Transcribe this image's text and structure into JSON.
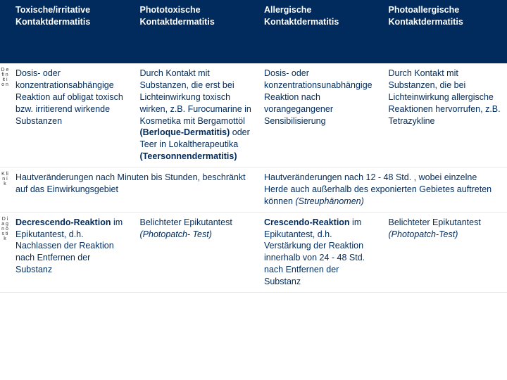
{
  "header": {
    "col1": "Toxische/irritative Kontaktdermatitis",
    "col2": "Phototoxische Kontaktdermatitis",
    "col3": "Allergische Kontaktdermatitis",
    "col4": "Photoallergische Kontaktdermatitis"
  },
  "rows": {
    "definition": {
      "side": "D e fi n it i o n",
      "c1": "Dosis- oder konzentrationsabhängige Reaktion auf obligat toxisch bzw. irritierend wirkende Substanzen",
      "c2_a": "Durch Kontakt mit Substanzen, die erst bei Lichteinwirkung toxisch wirken, z.B. Furocumarine in Kosmetika mit Bergamottöl ",
      "c2_b": "(Berloque-Dermatitis)",
      "c2_c": " oder Teer in Lokaltherapeutika ",
      "c2_d": "(Teersonnendermatitis)",
      "c3": "Dosis- oder konzentrationsunabhängige Reaktion nach vorangegangener Sensibilisierung",
      "c4": "Durch Kontakt mit Substanzen, die bei Lichteinwirkung allergische Reaktionen hervorrufen, z.B. Tetrazykline"
    },
    "klinik": {
      "side": "K li n i k",
      "left": "Hautveränderungen nach Minuten bis Stunden, beschränkt auf das Einwirkungsgebiet",
      "right_a": "Hautveränderungen nach 12 - 48 Std. , wobei einzelne Herde auch außerhalb des exponierten Gebietes auftreten können ",
      "right_b": "(Streuphänomen)"
    },
    "diagnostik": {
      "side": "D i a g n o s ti k",
      "c1_a": "Decrescendo-Reaktion",
      "c1_b": " im Epikutantest, d.h. Nachlassen der Reaktion nach Entfernen der Substanz",
      "c2_a": "Belichteter Epikutantest ",
      "c2_b": "(Photopatch- Test)",
      "c3_a": "Crescendo-Reaktion",
      "c3_b": " im Epikutantest, d.h. Verstärkung der Reaktion innerhalb von 24 - 48 Std. nach Entfernen der Substanz",
      "c4_a": "Belichteter Epikutantest ",
      "c4_b": "(Photopatch-Test)"
    }
  },
  "colors": {
    "header_bg": "#002b5c",
    "text": "#002b5c"
  }
}
